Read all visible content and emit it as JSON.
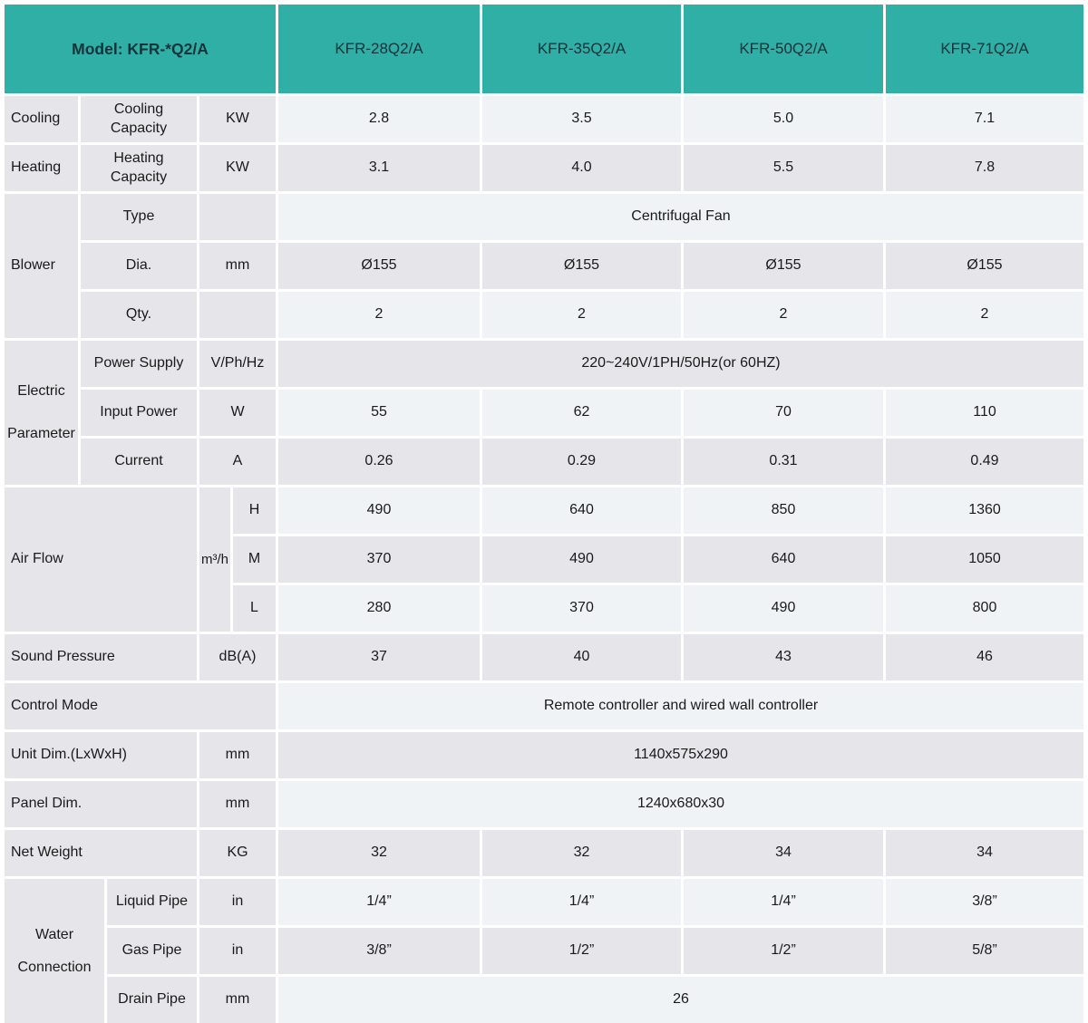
{
  "colors": {
    "teal": "#30AFA6",
    "cell_gray": "#E6E6EA",
    "row_light": "#EFF3F6",
    "row_gray": "#E6E6EA",
    "text": "#1A1A1A",
    "header_text": "#12333A"
  },
  "header": {
    "model": "Model: KFR-*Q2/A",
    "columns": [
      "KFR-28Q2/A",
      "KFR-35Q2/A",
      "KFR-50Q2/A",
      "KFR-71Q2/A"
    ]
  },
  "cooling": {
    "group": "Cooling",
    "label": "Cooling Capacity",
    "unit": "KW",
    "values": [
      "2.8",
      "3.5",
      "5.0",
      "7.1"
    ]
  },
  "heating": {
    "group": "Heating",
    "label": "Heating Capacity",
    "unit": "KW",
    "values": [
      "3.1",
      "4.0",
      "5.5",
      "7.8"
    ]
  },
  "blower": {
    "group": "Blower",
    "type": {
      "label": "Type",
      "unit": "",
      "value": "Centrifugal Fan"
    },
    "dia": {
      "label": "Dia.",
      "unit": "mm",
      "values": [
        "Ø155",
        "Ø155",
        "Ø155",
        "Ø155"
      ]
    },
    "qty": {
      "label": "Qty.",
      "unit": "",
      "values": [
        "2",
        "2",
        "2",
        "2"
      ]
    }
  },
  "electric": {
    "group": "Electric Parameter",
    "power_supply": {
      "label": "Power Supply",
      "unit": "V/Ph/Hz",
      "value": "220~240V/1PH/50Hz(or 60HZ)"
    },
    "input_power": {
      "label": "Input Power",
      "unit": "W",
      "values": [
        "55",
        "62",
        "70",
        "110"
      ]
    },
    "current": {
      "label": "Current",
      "unit": "A",
      "values": [
        "0.26",
        "0.29",
        "0.31",
        "0.49"
      ]
    }
  },
  "air_flow": {
    "group": "Air Flow",
    "unit": "m³/h",
    "high": {
      "label": "H",
      "values": [
        "490",
        "640",
        "850",
        "1360"
      ]
    },
    "medium": {
      "label": "M",
      "values": [
        "370",
        "490",
        "640",
        "1050"
      ]
    },
    "low": {
      "label": "L",
      "values": [
        "280",
        "370",
        "490",
        "800"
      ]
    }
  },
  "sound_pressure": {
    "label": "Sound Pressure",
    "unit": "dB(A)",
    "values": [
      "37",
      "40",
      "43",
      "46"
    ]
  },
  "control_mode": {
    "label": "Control Mode",
    "value": "Remote controller and wired wall controller"
  },
  "unit_dim": {
    "label": "Unit Dim.(LxWxH)",
    "unit": "mm",
    "value": "1140x575x290"
  },
  "panel_dim": {
    "label": "Panel Dim.",
    "unit": "mm",
    "value": "1240x680x30"
  },
  "net_weight": {
    "label": "Net Weight",
    "unit": "KG",
    "values": [
      "32",
      "32",
      "34",
      "34"
    ]
  },
  "water": {
    "group": "Water Connection",
    "liquid": {
      "label": "Liquid Pipe",
      "unit": "in",
      "values": [
        "1/4”",
        "1/4”",
        "1/4”",
        "3/8”"
      ]
    },
    "gas": {
      "label": "Gas Pipe",
      "unit": "in",
      "values": [
        "3/8”",
        "1/2”",
        "1/2”",
        "5/8”"
      ]
    },
    "drain": {
      "label": "Drain Pipe",
      "unit": "mm",
      "value": "26"
    }
  }
}
